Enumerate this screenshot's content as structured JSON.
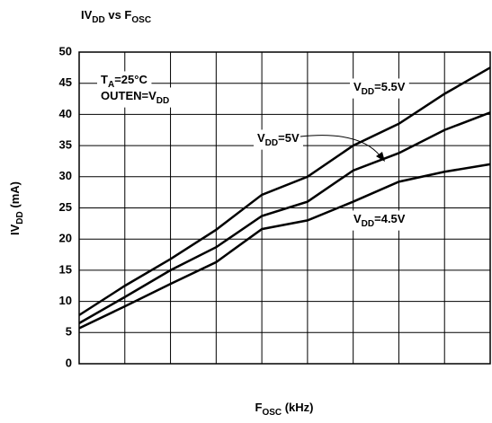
{
  "chart_data": {
    "type": "line",
    "title": [
      "IV",
      "DD",
      " vs F",
      "OSC"
    ],
    "y_label": [
      "IV",
      "DD",
      " (mA)"
    ],
    "x_label": [
      "F",
      "OSC",
      " (kHz)"
    ],
    "annotations": [
      [
        "T",
        "A",
        "=25°C"
      ],
      [
        "OUTEN=V",
        "DD"
      ]
    ],
    "x": [
      0,
      1,
      2,
      3,
      4,
      5,
      6,
      7,
      8,
      9
    ],
    "xlim": [
      0,
      9
    ],
    "xticks": [
      0,
      1,
      2,
      3,
      4,
      5,
      6,
      7,
      8,
      9
    ],
    "ylim": [
      0,
      50
    ],
    "yticks": [
      0,
      5,
      10,
      15,
      20,
      25,
      30,
      35,
      40,
      45,
      50
    ],
    "grid": true,
    "series": [
      {
        "name": [
          "V",
          "DD",
          "=5.5V"
        ],
        "color": "#000000",
        "values": [
          7.8,
          12.5,
          16.8,
          21.5,
          27.1,
          30,
          35,
          38.5,
          43.3,
          47.5
        ]
      },
      {
        "name": [
          "V",
          "DD",
          "=5V"
        ],
        "color": "#000000",
        "values": [
          6.5,
          10.7,
          15,
          18.7,
          23.7,
          26,
          31,
          33.8,
          37.5,
          40.3
        ]
      },
      {
        "name": [
          "V",
          "DD",
          "=4.5V"
        ],
        "color": "#000000",
        "values": [
          5.7,
          9.2,
          12.8,
          16.3,
          21.6,
          23,
          26,
          29.2,
          30.8,
          32
        ]
      }
    ]
  }
}
